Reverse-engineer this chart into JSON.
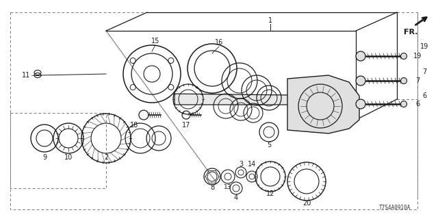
{
  "bg_color": "#ffffff",
  "line_color": "#1a1a1a",
  "diagram_code": "T7S4A0910A",
  "direction_label": "FR.",
  "figw": 6.4,
  "figh": 3.2,
  "dpi": 100
}
